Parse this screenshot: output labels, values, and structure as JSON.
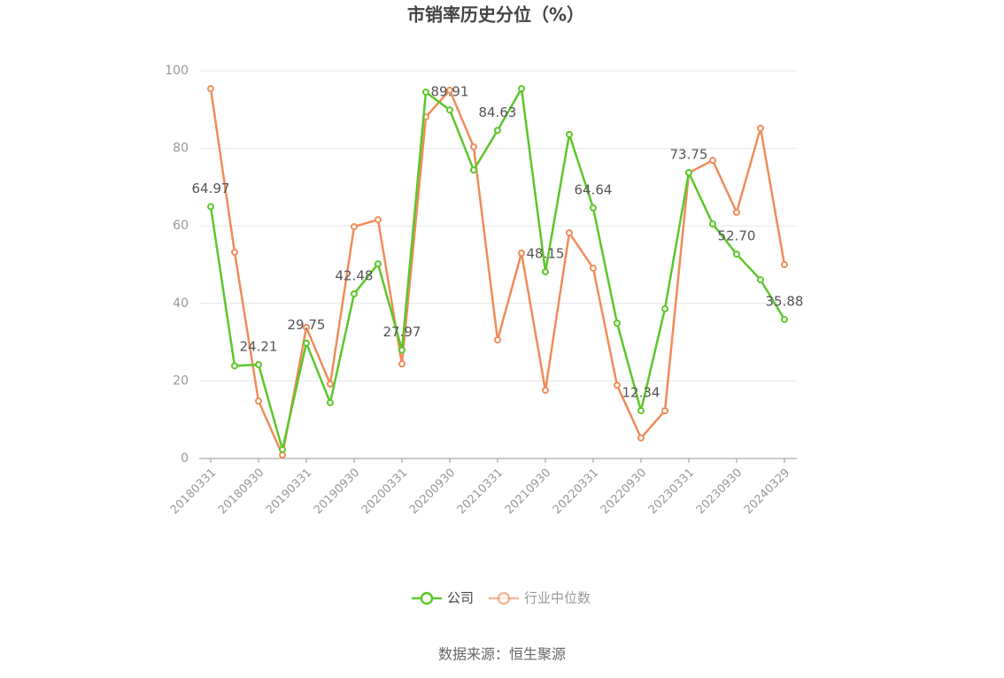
{
  "chart_data": {
    "type": "line",
    "title": "市销率历史分位（%）",
    "categories": [
      "20180331",
      null,
      "20180930",
      null,
      "20190331",
      null,
      "20190930",
      null,
      "20200331",
      null,
      "20200930",
      null,
      "20210331",
      null,
      "20210930",
      null,
      "20220331",
      null,
      "20220930",
      null,
      "20230331",
      null,
      "20230930",
      null,
      "20240329"
    ],
    "series": [
      {
        "name": "公司",
        "color": "#5cc72a",
        "values": [
          64.97,
          23.9,
          24.21,
          2.3,
          29.75,
          14.4,
          42.48,
          50.2,
          27.97,
          94.5,
          89.91,
          74.4,
          84.63,
          95.4,
          48.15,
          83.6,
          64.64,
          34.9,
          12.34,
          38.6,
          73.75,
          60.5,
          52.7,
          46.1,
          35.88
        ],
        "value_labels": [
          "64.97",
          null,
          "24.21",
          null,
          "29.75",
          null,
          "42.48",
          null,
          "27.97",
          null,
          "89.91",
          null,
          "84.63",
          null,
          "48.15",
          null,
          "64.64",
          null,
          "12.34",
          null,
          "73.75",
          null,
          "52.70",
          null,
          "35.88"
        ]
      },
      {
        "name": "行业中位数",
        "color": "#f08c5a",
        "values": [
          95.4,
          53.2,
          14.8,
          0.9,
          33.8,
          19.2,
          59.8,
          61.6,
          24.4,
          88.1,
          95.0,
          80.4,
          30.6,
          53.0,
          17.6,
          58.2,
          49.1,
          18.9,
          5.3,
          12.3,
          73.7,
          76.9,
          63.5,
          85.2,
          50.0
        ]
      }
    ],
    "ylim": [
      0,
      100
    ],
    "yticks": [
      0,
      20,
      40,
      60,
      80,
      100
    ],
    "grid": true,
    "source": "数据来源：恒生聚源"
  }
}
